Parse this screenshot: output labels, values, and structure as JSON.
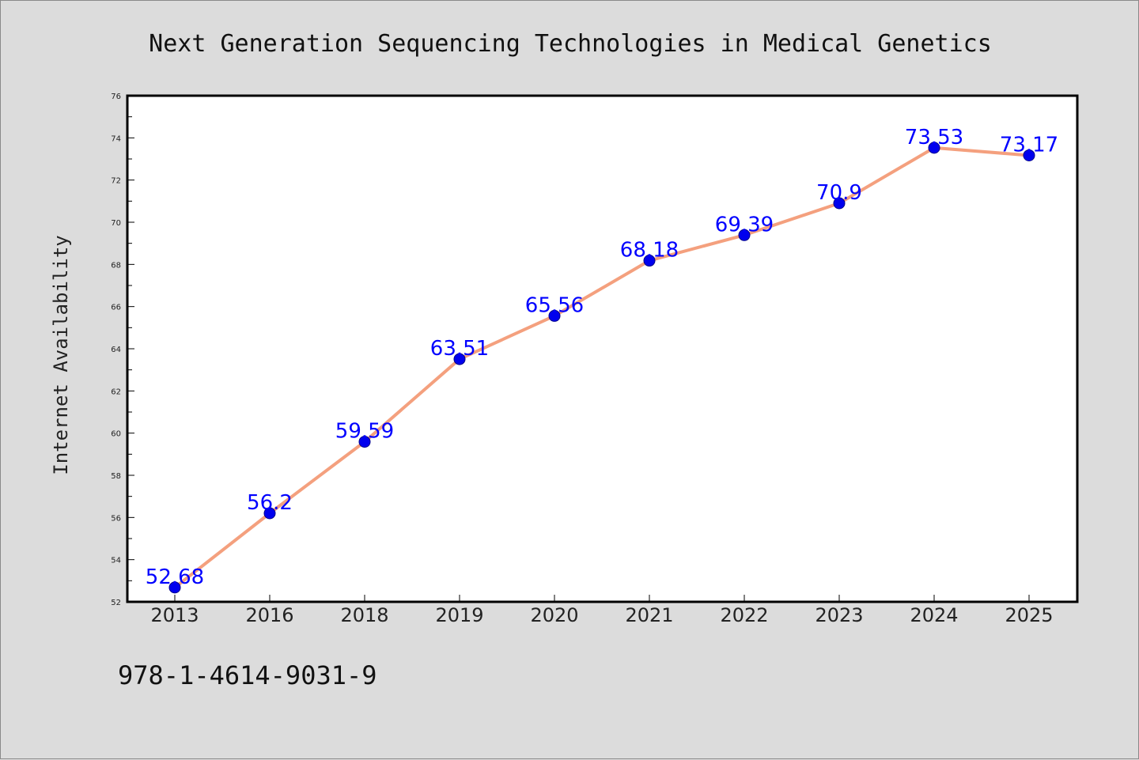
{
  "chart_data": {
    "type": "line",
    "title": "Next Generation Sequencing Technologies in Medical Genetics",
    "xlabel": "",
    "ylabel": "Internet Availability",
    "categories": [
      "2013",
      "2016",
      "2018",
      "2019",
      "2020",
      "2021",
      "2022",
      "2023",
      "2024",
      "2025"
    ],
    "series": [
      {
        "values": [
          52.68,
          56.2,
          59.59,
          63.51,
          65.56,
          68.18,
          69.39,
          70.9,
          73.53,
          73.17
        ],
        "data_labels": [
          "52.68",
          "56.2",
          "59.59",
          "63.51",
          "65.56",
          "68.18",
          "69.39",
          "70.9",
          "73.53",
          "73.17"
        ],
        "line_color": "#f4a07e",
        "marker_color": "#0000ee"
      }
    ],
    "ylim": [
      52,
      76
    ],
    "yticks": [
      52,
      54,
      56,
      58,
      60,
      62,
      64,
      66,
      68,
      70,
      72,
      74,
      76
    ],
    "grid": false,
    "label_color": "#0000ff"
  },
  "footer": {
    "isbn": "978-1-4614-9031-9"
  },
  "colors": {
    "background": "#dcdcdc",
    "plot_background": "#ffffff"
  }
}
